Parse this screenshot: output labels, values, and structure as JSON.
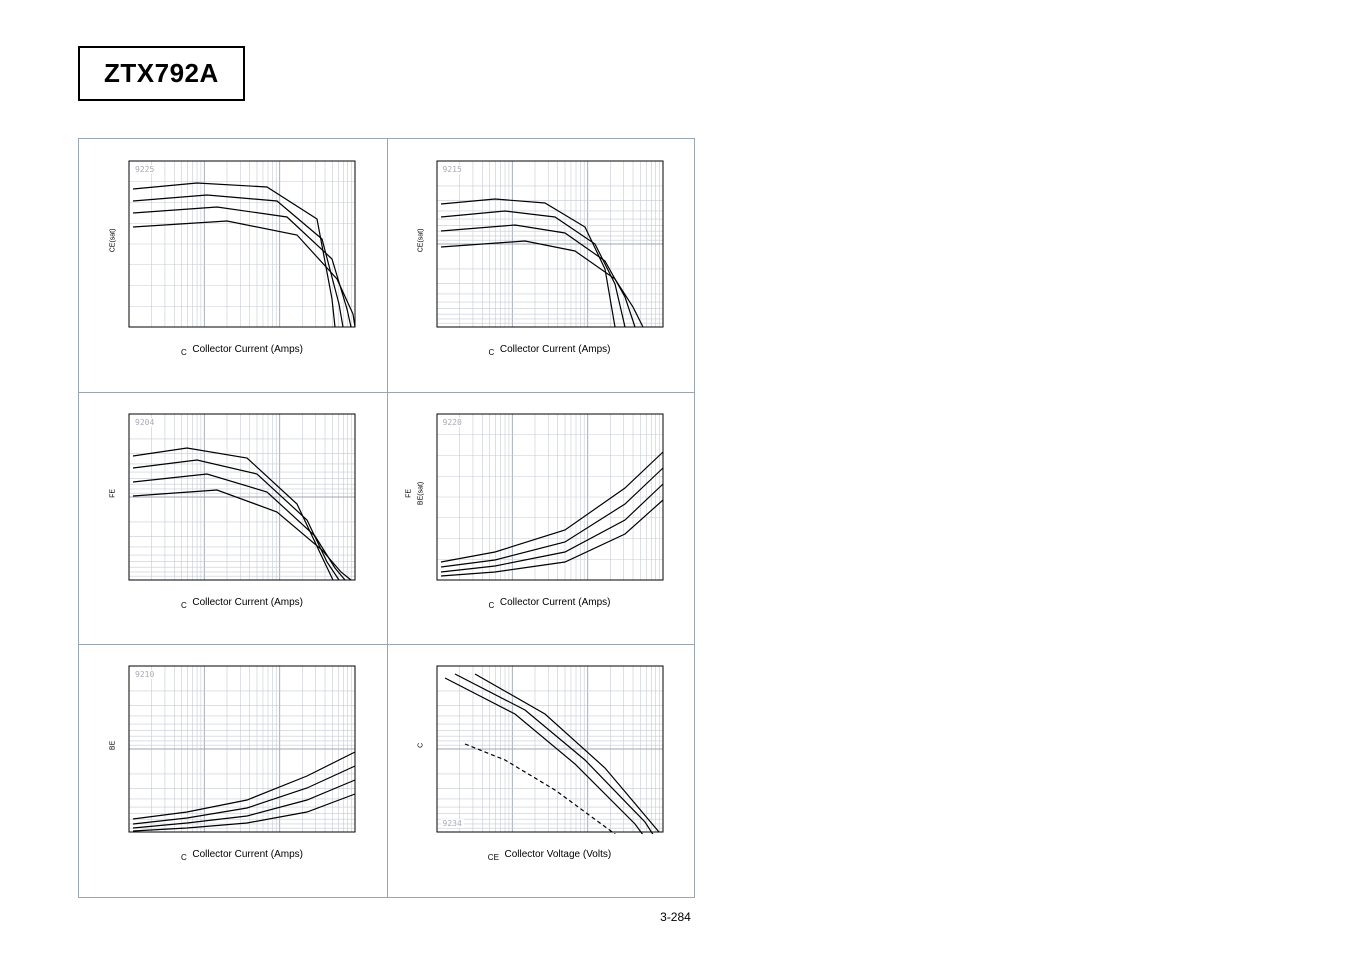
{
  "title": "ZTX792A",
  "page_number": "3-284",
  "charts": [
    {
      "corner_code": "9225",
      "ylabel_sub": "CE(sat)",
      "xlabel_sub": "C",
      "xlabel_text": "Collector Current (Amps)",
      "scale": "log-lin",
      "curves": [
        [
          [
            6,
            30
          ],
          [
            70,
            24
          ],
          [
            140,
            28
          ],
          [
            190,
            60
          ],
          [
            205,
            140
          ],
          [
            208,
            168
          ]
        ],
        [
          [
            6,
            42
          ],
          [
            80,
            36
          ],
          [
            150,
            42
          ],
          [
            195,
            80
          ],
          [
            212,
            145
          ],
          [
            216,
            168
          ]
        ],
        [
          [
            6,
            54
          ],
          [
            90,
            48
          ],
          [
            160,
            58
          ],
          [
            205,
            100
          ],
          [
            220,
            150
          ],
          [
            224,
            168
          ]
        ],
        [
          [
            6,
            68
          ],
          [
            100,
            62
          ],
          [
            170,
            76
          ],
          [
            210,
            120
          ],
          [
            226,
            155
          ],
          [
            228,
            168
          ]
        ]
      ]
    },
    {
      "corner_code": "9215",
      "ylabel_sub": "CE(sat)",
      "xlabel_sub": "C",
      "xlabel_text": "Collector Current (Amps)",
      "scale": "log-log",
      "curves": [
        [
          [
            6,
            45
          ],
          [
            60,
            40
          ],
          [
            110,
            44
          ],
          [
            150,
            68
          ],
          [
            170,
            110
          ],
          [
            180,
            168
          ]
        ],
        [
          [
            6,
            58
          ],
          [
            70,
            52
          ],
          [
            120,
            58
          ],
          [
            160,
            85
          ],
          [
            180,
            125
          ],
          [
            190,
            168
          ]
        ],
        [
          [
            6,
            72
          ],
          [
            80,
            66
          ],
          [
            130,
            74
          ],
          [
            170,
            102
          ],
          [
            190,
            138
          ],
          [
            200,
            168
          ]
        ],
        [
          [
            6,
            88
          ],
          [
            90,
            82
          ],
          [
            140,
            92
          ],
          [
            180,
            120
          ],
          [
            198,
            148
          ],
          [
            208,
            168
          ]
        ]
      ]
    },
    {
      "corner_code": "9204",
      "ylabel_sub": "FE",
      "xlabel_sub": "C",
      "xlabel_text": "Collector Current (Amps)",
      "scale": "log-log",
      "curves": [
        [
          [
            6,
            44
          ],
          [
            60,
            36
          ],
          [
            120,
            46
          ],
          [
            170,
            92
          ],
          [
            195,
            145
          ],
          [
            206,
            168
          ]
        ],
        [
          [
            6,
            56
          ],
          [
            70,
            48
          ],
          [
            130,
            62
          ],
          [
            180,
            108
          ],
          [
            200,
            150
          ],
          [
            212,
            168
          ]
        ],
        [
          [
            6,
            70
          ],
          [
            80,
            62
          ],
          [
            140,
            80
          ],
          [
            188,
            124
          ],
          [
            208,
            156
          ],
          [
            218,
            168
          ]
        ],
        [
          [
            6,
            84
          ],
          [
            90,
            78
          ],
          [
            150,
            100
          ],
          [
            195,
            138
          ],
          [
            214,
            160
          ],
          [
            224,
            168
          ]
        ]
      ]
    },
    {
      "corner_code": "9220",
      "ylabel_sub": "BE(sat)",
      "ylabel_extra": "FE",
      "xlabel_sub": "C",
      "xlabel_text": "Collector Current (Amps)",
      "scale": "log-lin",
      "curves": [
        [
          [
            6,
            150
          ],
          [
            60,
            140
          ],
          [
            130,
            118
          ],
          [
            190,
            76
          ],
          [
            228,
            40
          ]
        ],
        [
          [
            6,
            155
          ],
          [
            60,
            148
          ],
          [
            130,
            130
          ],
          [
            190,
            92
          ],
          [
            228,
            56
          ]
        ],
        [
          [
            6,
            160
          ],
          [
            60,
            154
          ],
          [
            130,
            140
          ],
          [
            190,
            108
          ],
          [
            228,
            72
          ]
        ],
        [
          [
            6,
            164
          ],
          [
            60,
            160
          ],
          [
            130,
            150
          ],
          [
            190,
            122
          ],
          [
            228,
            88
          ]
        ]
      ]
    },
    {
      "corner_code": "9210",
      "ylabel_sub": "BE",
      "xlabel_sub": "C",
      "xlabel_text": "Collector Current (Amps)",
      "scale": "log-log",
      "curves": [
        [
          [
            6,
            155
          ],
          [
            60,
            148
          ],
          [
            120,
            136
          ],
          [
            180,
            112
          ],
          [
            228,
            88
          ]
        ],
        [
          [
            6,
            160
          ],
          [
            60,
            154
          ],
          [
            120,
            144
          ],
          [
            180,
            124
          ],
          [
            228,
            102
          ]
        ],
        [
          [
            6,
            164
          ],
          [
            60,
            159
          ],
          [
            120,
            152
          ],
          [
            180,
            136
          ],
          [
            228,
            116
          ]
        ],
        [
          [
            6,
            167
          ],
          [
            60,
            164
          ],
          [
            120,
            159
          ],
          [
            180,
            148
          ],
          [
            228,
            130
          ]
        ]
      ]
    },
    {
      "corner_code": "9234",
      "ylabel_sub": "C",
      "xlabel_sub": "CE",
      "xlabel_text": "Collector Voltage (Volts)",
      "scale": "log-log",
      "curves": [
        [
          [
            10,
            14
          ],
          [
            80,
            50
          ],
          [
            140,
            100
          ],
          [
            200,
            160
          ],
          [
            222,
            190
          ]
        ],
        [
          [
            20,
            10
          ],
          [
            90,
            46
          ],
          [
            150,
            96
          ],
          [
            210,
            158
          ],
          [
            228,
            186
          ]
        ],
        [
          [
            40,
            10
          ],
          [
            110,
            50
          ],
          [
            170,
            104
          ],
          [
            224,
            168
          ]
        ],
        [
          [
            30,
            80
          ],
          [
            70,
            96
          ],
          [
            120,
            126
          ],
          [
            180,
            170
          ],
          [
            198,
            190
          ]
        ]
      ],
      "dashed_idx": 3
    }
  ]
}
